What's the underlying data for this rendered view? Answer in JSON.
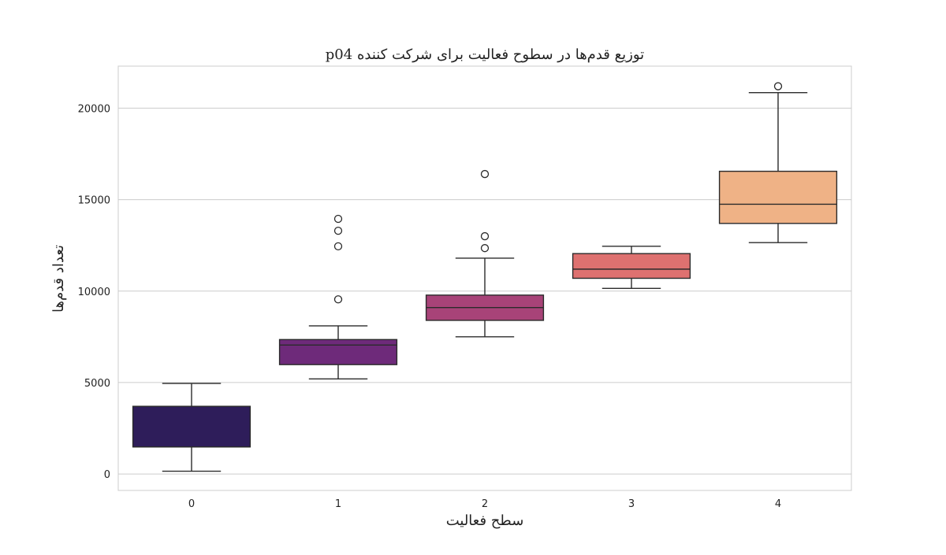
{
  "chart_data": {
    "type": "box",
    "title": "توزیع قدم‌ها در سطوح فعالیت برای شرکت کننده p04",
    "xlabel": "سطح فعالیت",
    "ylabel": "تعداد قدم‌ها",
    "categories": [
      "0",
      "1",
      "2",
      "3",
      "4"
    ],
    "ylim": [
      -900,
      22300
    ],
    "yticks": [
      0,
      5000,
      10000,
      15000,
      20000
    ],
    "yticks_labels": [
      "0",
      "5000",
      "10000",
      "15000",
      "20000"
    ],
    "grid": true,
    "legend": "none",
    "boxes": [
      {
        "category": "0",
        "whisker_low": 150,
        "q1": 1480,
        "median": 1480,
        "q3": 3700,
        "whisker_high": 4950,
        "outliers": [],
        "color": "#2e1d5a"
      },
      {
        "category": "1",
        "whisker_low": 5200,
        "q1": 5980,
        "median": 7050,
        "q3": 7350,
        "whisker_high": 8100,
        "outliers": [
          9550,
          12450,
          13300,
          13950
        ],
        "color": "#6e2a7a"
      },
      {
        "category": "2",
        "whisker_low": 7500,
        "q1": 8400,
        "median": 9100,
        "q3": 9780,
        "whisker_high": 11800,
        "outliers": [
          12350,
          13000,
          16400
        ],
        "color": "#a84378"
      },
      {
        "category": "3",
        "whisker_low": 10150,
        "q1": 10700,
        "median": 11200,
        "q3": 12050,
        "whisker_high": 12450,
        "outliers": [],
        "color": "#de7170"
      },
      {
        "category": "4",
        "whisker_low": 12650,
        "q1": 13700,
        "median": 14750,
        "q3": 16550,
        "whisker_high": 20850,
        "outliers": [
          21200
        ],
        "color": "#efb286"
      }
    ]
  }
}
